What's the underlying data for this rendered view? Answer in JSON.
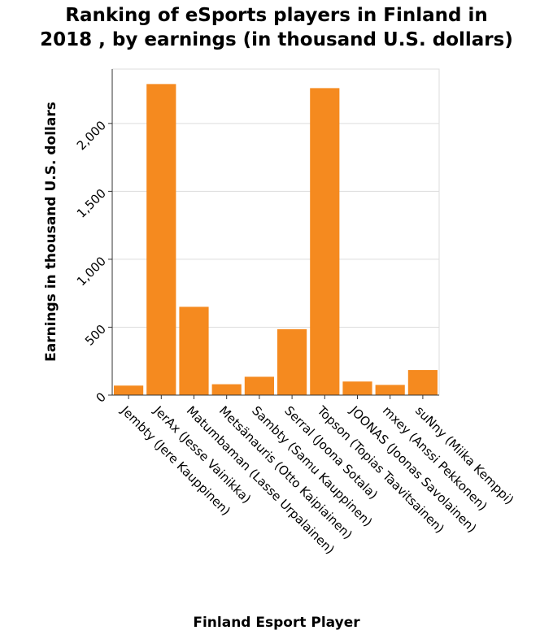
{
  "chart_data": {
    "type": "bar",
    "title": "Ranking of eSports players in Finland in\n2018 , by earnings (in thousand U.S. dollars)",
    "xlabel": "Finland Esport Player",
    "ylabel": "Earnings in thousand U.S. dollars",
    "categories": [
      "Jembty (Jere Kauppinen)",
      "JerAx (Jesse Vainikka)",
      "Matumbaman (Lasse Urpalainen)",
      "Metsänauris (Otto Kaipiainen)",
      "Sambty (Samu Kauppinen)",
      "Serral (Joona Sotala)",
      "Topson (Topias Taavitsainen)",
      "JOONAS (Joonas Savolainen)",
      "mxey (Anssi Pekkonen)",
      "suNny (Miika Kemppi)"
    ],
    "values": [
      70,
      2290,
      650,
      80,
      135,
      485,
      2260,
      100,
      75,
      185
    ],
    "ylim": [
      0,
      2400
    ],
    "yticks": [
      0,
      500,
      1000,
      1500,
      2000
    ],
    "ytick_labels": [
      "0",
      "500",
      "1,000",
      "1,500",
      "2,000"
    ],
    "grid": true,
    "colors": {
      "bar": "#f58a1f",
      "grid": "#dddddd",
      "axis": "#333333"
    }
  }
}
